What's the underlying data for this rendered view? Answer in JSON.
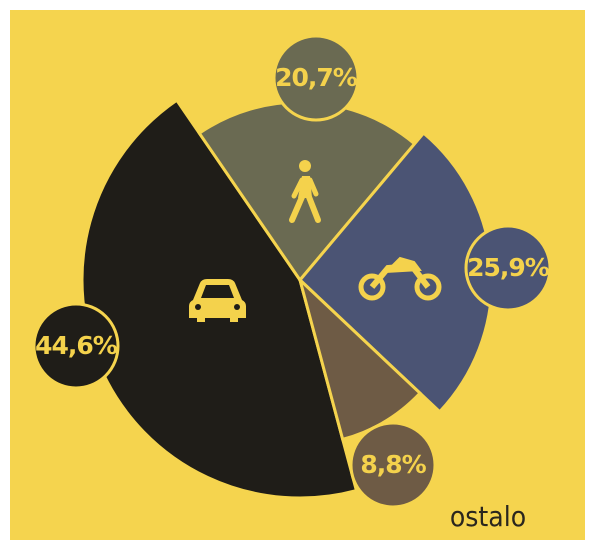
{
  "chart_data": {
    "type": "pie",
    "categories": [
      null,
      null,
      null,
      "ostalo"
    ],
    "values": [
      44.6,
      20.7,
      25.9,
      8.8
    ],
    "value_labels": [
      "44,6%",
      "20,7%",
      "25,9%",
      "8,8%"
    ],
    "colors": [
      "#1f1d18",
      "#6a6a52",
      "#4b5474",
      "#6e5b45"
    ]
  }
}
